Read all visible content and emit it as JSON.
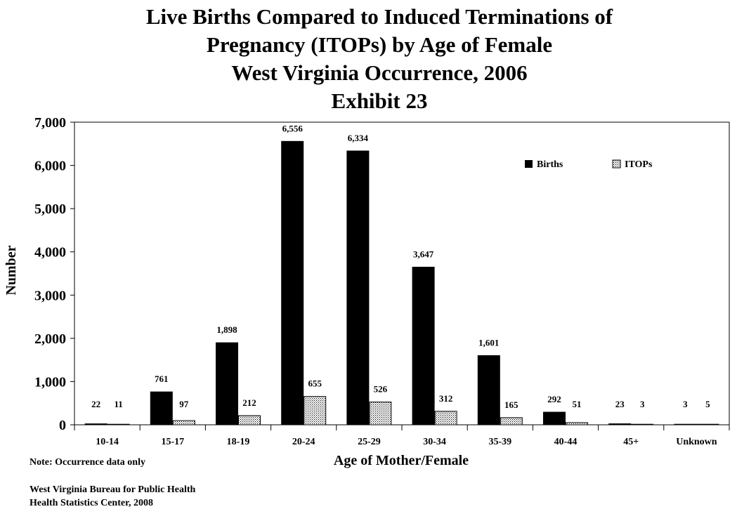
{
  "title": {
    "lines": [
      "Live Births Compared to Induced Terminations of",
      "Pregnancy (ITOPs) by Age of Female",
      "West Virginia Occurrence, 2006",
      "Exhibit 23"
    ]
  },
  "footer": {
    "note": "Note:  Occurrence data only",
    "source_line1": "West Virginia Bureau for Public Health",
    "source_line2": "Health Statistics Center, 2008"
  },
  "chart_data": {
    "type": "bar",
    "categories": [
      "10-14",
      "15-17",
      "18-19",
      "20-24",
      "25-29",
      "30-34",
      "35-39",
      "40-44",
      "45+",
      "Unknown"
    ],
    "series": [
      {
        "name": "Births",
        "values": [
          22,
          761,
          1898,
          6556,
          6334,
          3647,
          1601,
          292,
          23,
          3
        ],
        "labels": [
          "22",
          "761",
          "1,898",
          "6,556",
          "6,334",
          "3,647",
          "1,601",
          "292",
          "23",
          "3"
        ],
        "color": "#000000",
        "fill": "solid"
      },
      {
        "name": "ITOPs",
        "values": [
          11,
          97,
          212,
          655,
          526,
          312,
          165,
          51,
          3,
          5
        ],
        "labels": [
          "11",
          "97",
          "212",
          "655",
          "526",
          "312",
          "165",
          "51",
          "3",
          "5"
        ],
        "color": "#000000",
        "fill": "dotted"
      }
    ],
    "xlabel": "Age of Mother/Female",
    "ylabel": "Number",
    "ylim": [
      0,
      7000
    ],
    "yticks": [
      0,
      1000,
      2000,
      3000,
      4000,
      5000,
      6000,
      7000
    ],
    "ytick_labels": [
      "0",
      "1,000",
      "2,000",
      "3,000",
      "4,000",
      "5,000",
      "6,000",
      "7,000"
    ],
    "grid": false,
    "legend_position": "top-right"
  }
}
